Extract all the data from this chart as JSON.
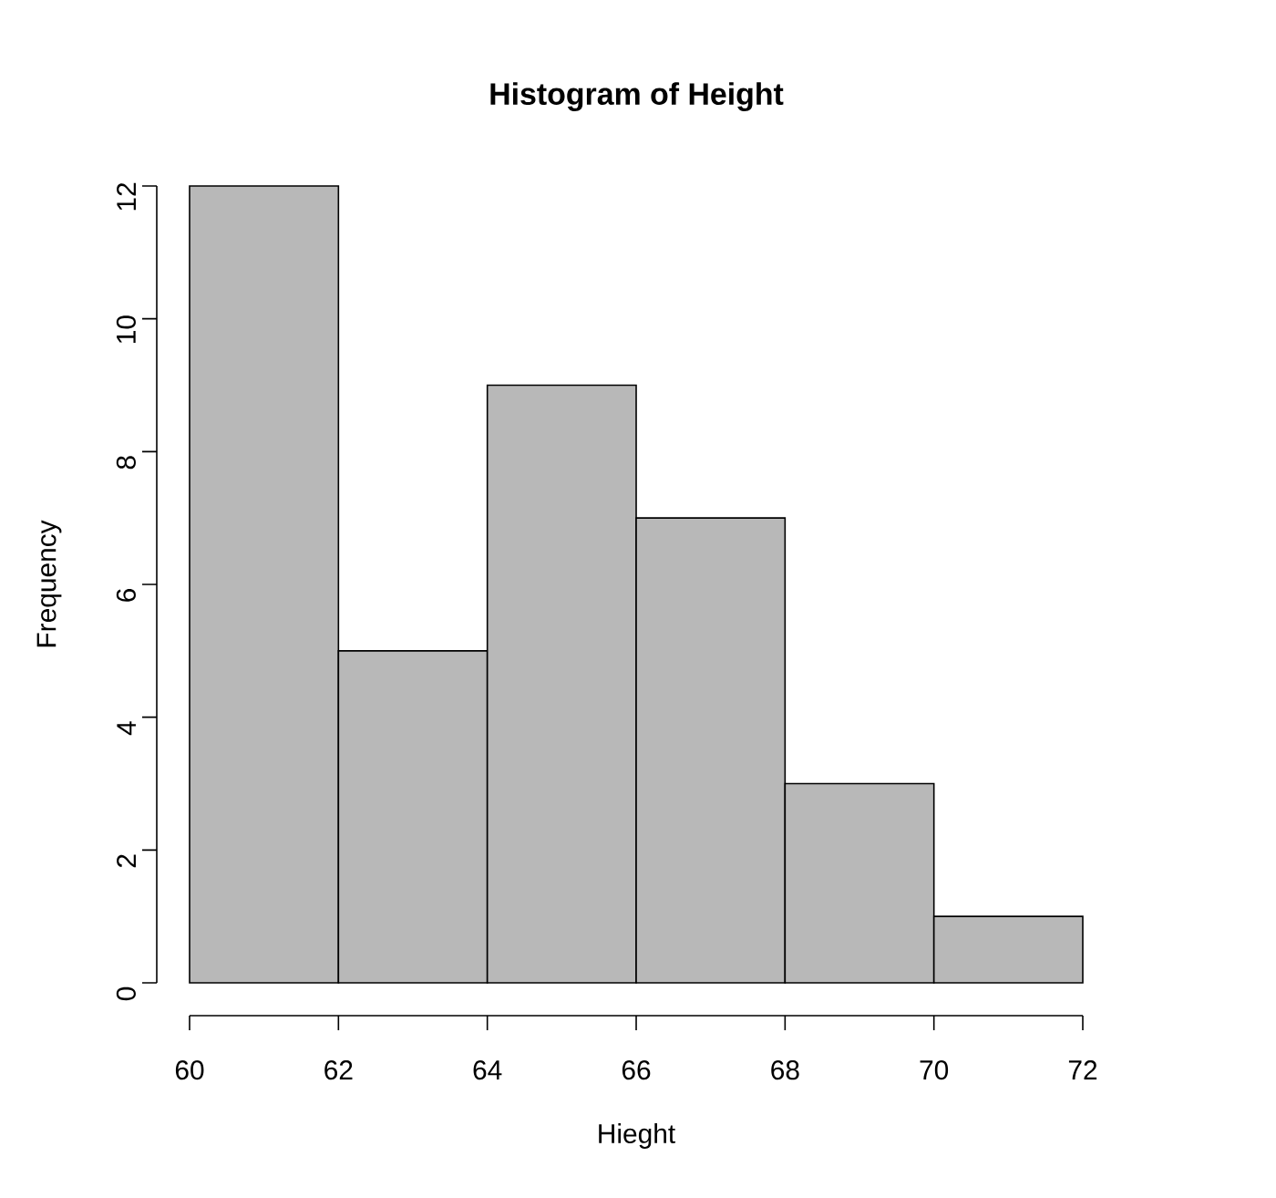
{
  "chart_data": {
    "type": "histogram",
    "title": "Histogram of Height",
    "xlabel": "Hieght",
    "ylabel": "Frequency",
    "bins": [
      60,
      62,
      64,
      66,
      68,
      70,
      72
    ],
    "values": [
      12,
      5,
      9,
      7,
      3,
      1
    ],
    "color": "#b8b8b8",
    "xlim": [
      60,
      72
    ],
    "ylim": [
      0,
      12
    ],
    "xticks": [
      60,
      62,
      64,
      66,
      68,
      70,
      72
    ],
    "yticks": [
      0,
      2,
      4,
      6,
      8,
      10,
      12
    ],
    "grid": false
  }
}
